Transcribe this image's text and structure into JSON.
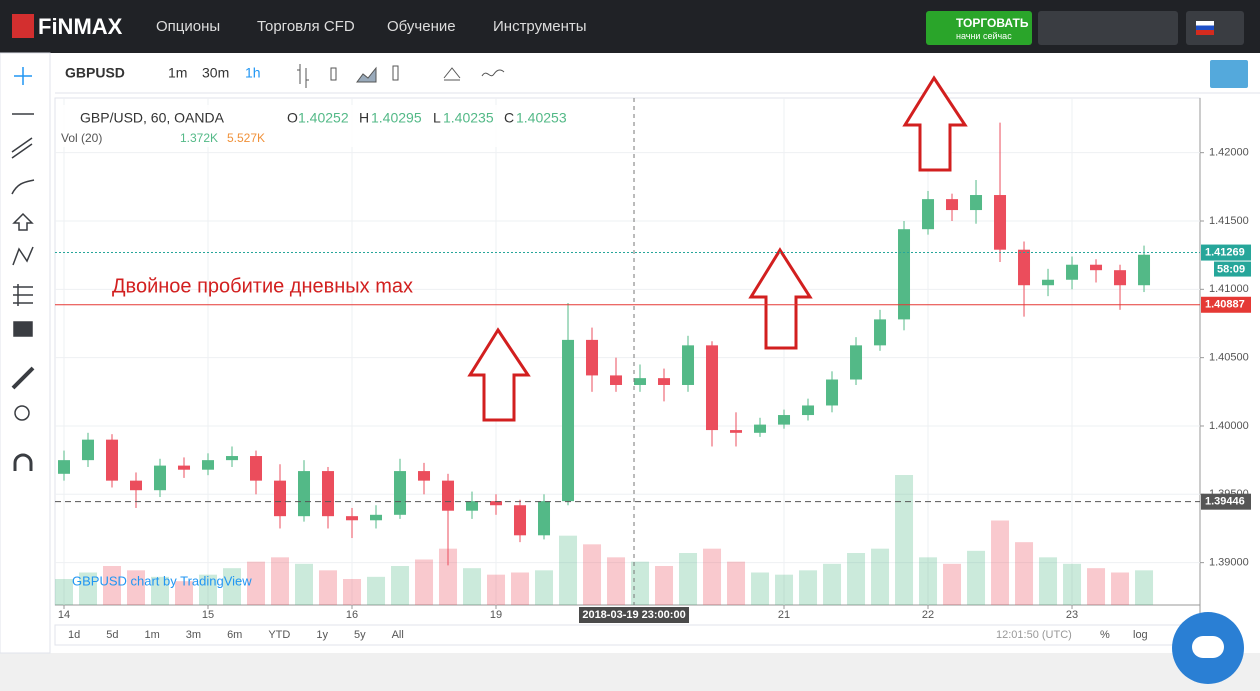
{
  "nav": {
    "logo": "FiNMAX",
    "menu": [
      "Опционы",
      "Торговля CFD",
      "Обучение",
      "Инструменты"
    ],
    "trade_button": "ТОРГОВАТЬ",
    "trade_sub": "начни сейчас"
  },
  "toolbar": {
    "symbol": "GBPUSD",
    "intervals": [
      "1m",
      "30m",
      "1h"
    ]
  },
  "legend": {
    "title": "GBP/USD, 60, OANDA",
    "o_label": "O",
    "o": 1.40252,
    "h_label": "H",
    "h": 1.40295,
    "l_label": "L",
    "l": 1.40235,
    "c_label": "C",
    "c": 1.40253,
    "vol_title": "Vol (20)",
    "vol_value": "1.372K",
    "vol_ma": "5.527K"
  },
  "annotation": "Двойное пробитие дневных max",
  "watermark": "GBPUSD chart by TradingView",
  "bottom_bar": {
    "ranges": [
      "1d",
      "5d",
      "1m",
      "3m",
      "6m",
      "YTD",
      "1y",
      "5y",
      "All"
    ],
    "clock": "12:01:50 (UTC)",
    "percent": "%",
    "log": "log"
  },
  "chart_data": {
    "type": "candlestick",
    "x": [
      0,
      4,
      8,
      12,
      16,
      20,
      24,
      28,
      32,
      36,
      40,
      44,
      48,
      52,
      56,
      60,
      64,
      68,
      72,
      76,
      80,
      84,
      88,
      92,
      96,
      100,
      104,
      108,
      112,
      116,
      120,
      124,
      128,
      132,
      136,
      140,
      144,
      148,
      152,
      156,
      160,
      164,
      168,
      172,
      176,
      180
    ],
    "open": [
      1.3965,
      1.3975,
      1.399,
      1.396,
      1.3953,
      1.3971,
      1.3968,
      1.3975,
      1.3978,
      1.396,
      1.3934,
      1.3967,
      1.3934,
      1.3931,
      1.3935,
      1.3967,
      1.396,
      1.3938,
      1.3945,
      1.3942,
      1.392,
      1.3945,
      1.4063,
      1.4037,
      1.403,
      1.4035,
      1.403,
      1.4059,
      1.3997,
      1.3995,
      1.4001,
      1.4008,
      1.4015,
      1.4034,
      1.4059,
      1.4078,
      1.4144,
      1.4166,
      1.4158,
      1.4169,
      1.4129,
      1.4103,
      1.4107,
      1.4118,
      1.4114,
      1.4103
    ],
    "high": [
      1.3982,
      1.3995,
      1.3994,
      1.3966,
      1.3976,
      1.3977,
      1.398,
      1.3985,
      1.3982,
      1.3972,
      1.3975,
      1.397,
      1.394,
      1.3942,
      1.3976,
      1.3973,
      1.3965,
      1.3952,
      1.395,
      1.3946,
      1.395,
      1.409,
      1.4072,
      1.405,
      1.4045,
      1.4042,
      1.4066,
      1.4062,
      1.401,
      1.4006,
      1.4012,
      1.402,
      1.404,
      1.4065,
      1.4085,
      1.415,
      1.4172,
      1.417,
      1.418,
      1.4222,
      1.4135,
      1.4115,
      1.4124,
      1.4122,
      1.4118,
      1.4132
    ],
    "low": [
      1.396,
      1.397,
      1.3955,
      1.394,
      1.3948,
      1.3962,
      1.3964,
      1.397,
      1.395,
      1.3925,
      1.393,
      1.3925,
      1.3918,
      1.3925,
      1.3932,
      1.395,
      1.3898,
      1.3932,
      1.3935,
      1.3915,
      1.3917,
      1.3942,
      1.4025,
      1.4025,
      1.4025,
      1.4018,
      1.4025,
      1.3985,
      1.3985,
      1.3992,
      1.3998,
      1.4004,
      1.401,
      1.403,
      1.4055,
      1.407,
      1.414,
      1.415,
      1.4148,
      1.412,
      1.408,
      1.4095,
      1.41,
      1.4105,
      1.4085,
      1.4098
    ],
    "close": [
      1.3975,
      1.399,
      1.396,
      1.3953,
      1.3971,
      1.3968,
      1.3975,
      1.3978,
      1.396,
      1.3934,
      1.3967,
      1.3934,
      1.3931,
      1.3935,
      1.3967,
      1.396,
      1.3938,
      1.3945,
      1.3942,
      1.392,
      1.3945,
      1.4063,
      1.4037,
      1.403,
      1.4035,
      1.403,
      1.4059,
      1.3997,
      1.3995,
      1.4001,
      1.4008,
      1.4015,
      1.4034,
      1.4059,
      1.4078,
      1.4144,
      1.4166,
      1.4158,
      1.4169,
      1.4129,
      1.4103,
      1.4107,
      1.4118,
      1.4114,
      1.4103,
      1.41253
    ],
    "volume": [
      1.2,
      1.5,
      1.8,
      1.6,
      1.3,
      1.1,
      1.4,
      1.7,
      2.0,
      2.2,
      1.9,
      1.6,
      1.2,
      1.3,
      1.8,
      2.1,
      2.6,
      1.7,
      1.4,
      1.5,
      1.6,
      3.2,
      2.8,
      2.2,
      2.0,
      1.8,
      2.4,
      2.6,
      2.0,
      1.5,
      1.4,
      1.6,
      1.9,
      2.4,
      2.6,
      6.0,
      2.2,
      1.9,
      2.5,
      3.9,
      2.9,
      2.2,
      1.9,
      1.7,
      1.5,
      1.6
    ],
    "up_color": "#53b987",
    "down_color": "#eb4d5c",
    "xlim": [
      -1.5,
      189.33
    ],
    "xticks": [
      {
        "value": 0,
        "label": "14"
      },
      {
        "value": 24,
        "label": "15"
      },
      {
        "value": 48,
        "label": "16"
      },
      {
        "value": 72,
        "label": "19"
      },
      {
        "value": 120,
        "label": "21"
      },
      {
        "value": 144,
        "label": "22"
      },
      {
        "value": 168,
        "label": "23"
      }
    ],
    "ylim": [
      1.3869,
      1.424
    ],
    "yticks": [
      {
        "value": 1.39,
        "label": "1.39000"
      },
      {
        "value": 1.395,
        "label": "1.39500"
      },
      {
        "value": 1.4,
        "label": "1.40000"
      },
      {
        "value": 1.405,
        "label": "1.40500"
      },
      {
        "value": 1.41,
        "label": "1.41000"
      },
      {
        "value": 1.415,
        "label": "1.41500"
      },
      {
        "value": 1.42,
        "label": "1.42000"
      }
    ],
    "vlim": [
      0,
      6
    ],
    "grid": true,
    "levels": [
      {
        "value": 1.40887,
        "color": "#e53935",
        "style": "solid"
      },
      {
        "value": 1.41269,
        "color": "#26a69a",
        "style": "dotted",
        "countdown": "58:09"
      },
      {
        "value": 1.39446,
        "color": "#555555",
        "style": "dashed"
      }
    ],
    "crosshair_x": 95,
    "crosshair_label": "2018-03-19 23:00:00"
  }
}
